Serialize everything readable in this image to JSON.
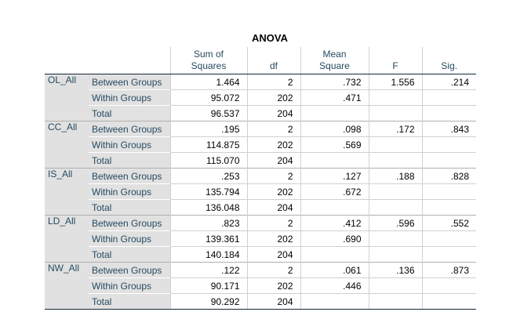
{
  "table": {
    "title": "ANOVA",
    "columns": [
      "Sum of Squares",
      "df",
      "Mean Square",
      "F",
      "Sig."
    ],
    "groups": [
      {
        "label": "OL_All",
        "rows": [
          {
            "source": "Between Groups",
            "values": [
              "1.464",
              "2",
              ".732",
              "1.556",
              ".214"
            ]
          },
          {
            "source": "Within Groups",
            "values": [
              "95.072",
              "202",
              ".471"
            ]
          },
          {
            "source": "Total",
            "values": [
              "96.537",
              "204"
            ]
          }
        ]
      },
      {
        "label": "CC_All",
        "rows": [
          {
            "source": "Between Groups",
            "values": [
              ".195",
              "2",
              ".098",
              ".172",
              ".843"
            ]
          },
          {
            "source": "Within Groups",
            "values": [
              "114.875",
              "202",
              ".569"
            ]
          },
          {
            "source": "Total",
            "values": [
              "115.070",
              "204"
            ]
          }
        ]
      },
      {
        "label": "IS_All",
        "rows": [
          {
            "source": "Between Groups",
            "values": [
              ".253",
              "2",
              ".127",
              ".188",
              ".828"
            ]
          },
          {
            "source": "Within Groups",
            "values": [
              "135.794",
              "202",
              ".672"
            ]
          },
          {
            "source": "Total",
            "values": [
              "136.048",
              "204"
            ]
          }
        ]
      },
      {
        "label": "LD_All",
        "rows": [
          {
            "source": "Between Groups",
            "values": [
              ".823",
              "2",
              ".412",
              ".596",
              ".552"
            ]
          },
          {
            "source": "Within Groups",
            "values": [
              "139.361",
              "202",
              ".690"
            ]
          },
          {
            "source": "Total",
            "values": [
              "140.184",
              "204"
            ]
          }
        ]
      },
      {
        "label": "NW_All",
        "rows": [
          {
            "source": "Between Groups",
            "values": [
              ".122",
              "2",
              ".061",
              ".136",
              ".873"
            ]
          },
          {
            "source": "Within Groups",
            "values": [
              "90.171",
              "202",
              ".446"
            ]
          },
          {
            "source": "Total",
            "values": [
              "90.292",
              "204"
            ]
          }
        ]
      }
    ]
  }
}
